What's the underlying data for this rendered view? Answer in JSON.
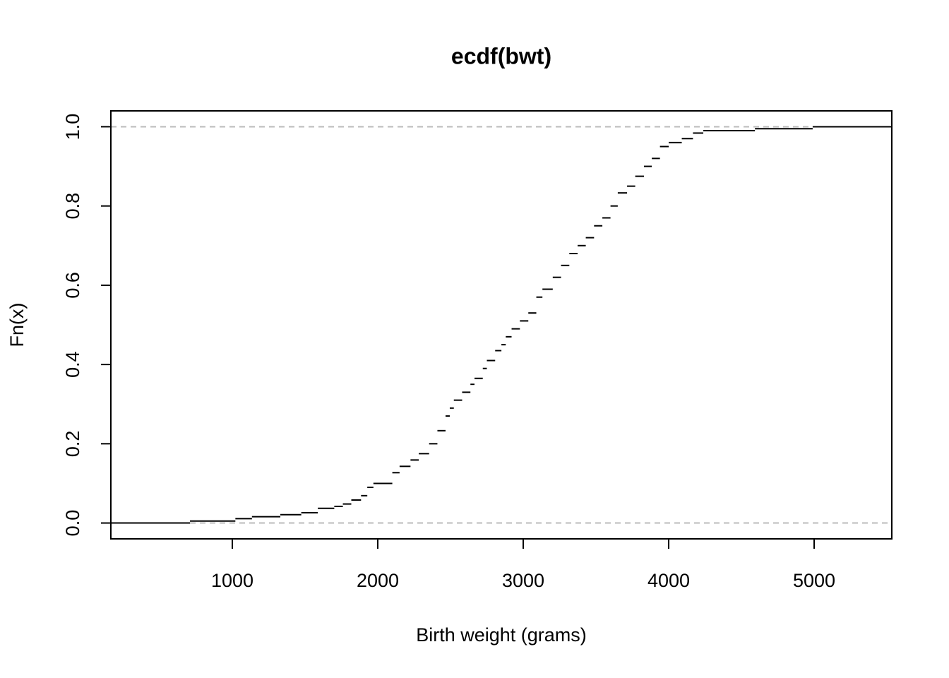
{
  "chart_data": {
    "type": "ecdf",
    "title": "ecdf(bwt)",
    "x_label": "Birth weight (grams)",
    "y_label": "Fn(x)",
    "x": [
      709,
      1021,
      1135,
      1330,
      1474,
      1588,
      1701,
      1760,
      1818,
      1885,
      1928,
      1970,
      2100,
      2150,
      2225,
      2282,
      2353,
      2410,
      2466,
      2495,
      2523,
      2580,
      2637,
      2665,
      2722,
      2750,
      2807,
      2850,
      2880,
      2920,
      2977,
      3035,
      3090,
      3132,
      3203,
      3260,
      3317,
      3374,
      3430,
      3487,
      3544,
      3600,
      3650,
      3714,
      3770,
      3830,
      3884,
      3940,
      4000,
      4090,
      4167,
      4238,
      4593,
      4990
    ],
    "values": [
      0.005,
      0.011,
      0.016,
      0.021,
      0.026,
      0.037,
      0.042,
      0.048,
      0.058,
      0.069,
      0.09,
      0.1,
      0.127,
      0.143,
      0.159,
      0.175,
      0.2,
      0.233,
      0.27,
      0.29,
      0.31,
      0.33,
      0.35,
      0.365,
      0.39,
      0.41,
      0.435,
      0.45,
      0.47,
      0.49,
      0.51,
      0.53,
      0.57,
      0.59,
      0.62,
      0.65,
      0.68,
      0.7,
      0.72,
      0.75,
      0.77,
      0.8,
      0.833,
      0.85,
      0.875,
      0.9,
      0.92,
      0.95,
      0.96,
      0.97,
      0.984,
      0.99,
      0.995,
      1.0
    ],
    "color": "#000000",
    "xlim": [
      165,
      5534
    ],
    "ylim": [
      -0.04,
      1.04
    ],
    "xticks": [
      1000,
      2000,
      3000,
      4000,
      5000
    ],
    "yticks": [
      {
        "value": 0,
        "label": "0.0"
      },
      {
        "value": 0.2,
        "label": "0.2"
      },
      {
        "value": 0.4,
        "label": "0.4"
      },
      {
        "value": 0.6,
        "label": "0.6"
      },
      {
        "value": 0.8,
        "label": "0.8"
      },
      {
        "value": 1,
        "label": "1.0"
      }
    ],
    "hlines": [
      0,
      1
    ]
  }
}
